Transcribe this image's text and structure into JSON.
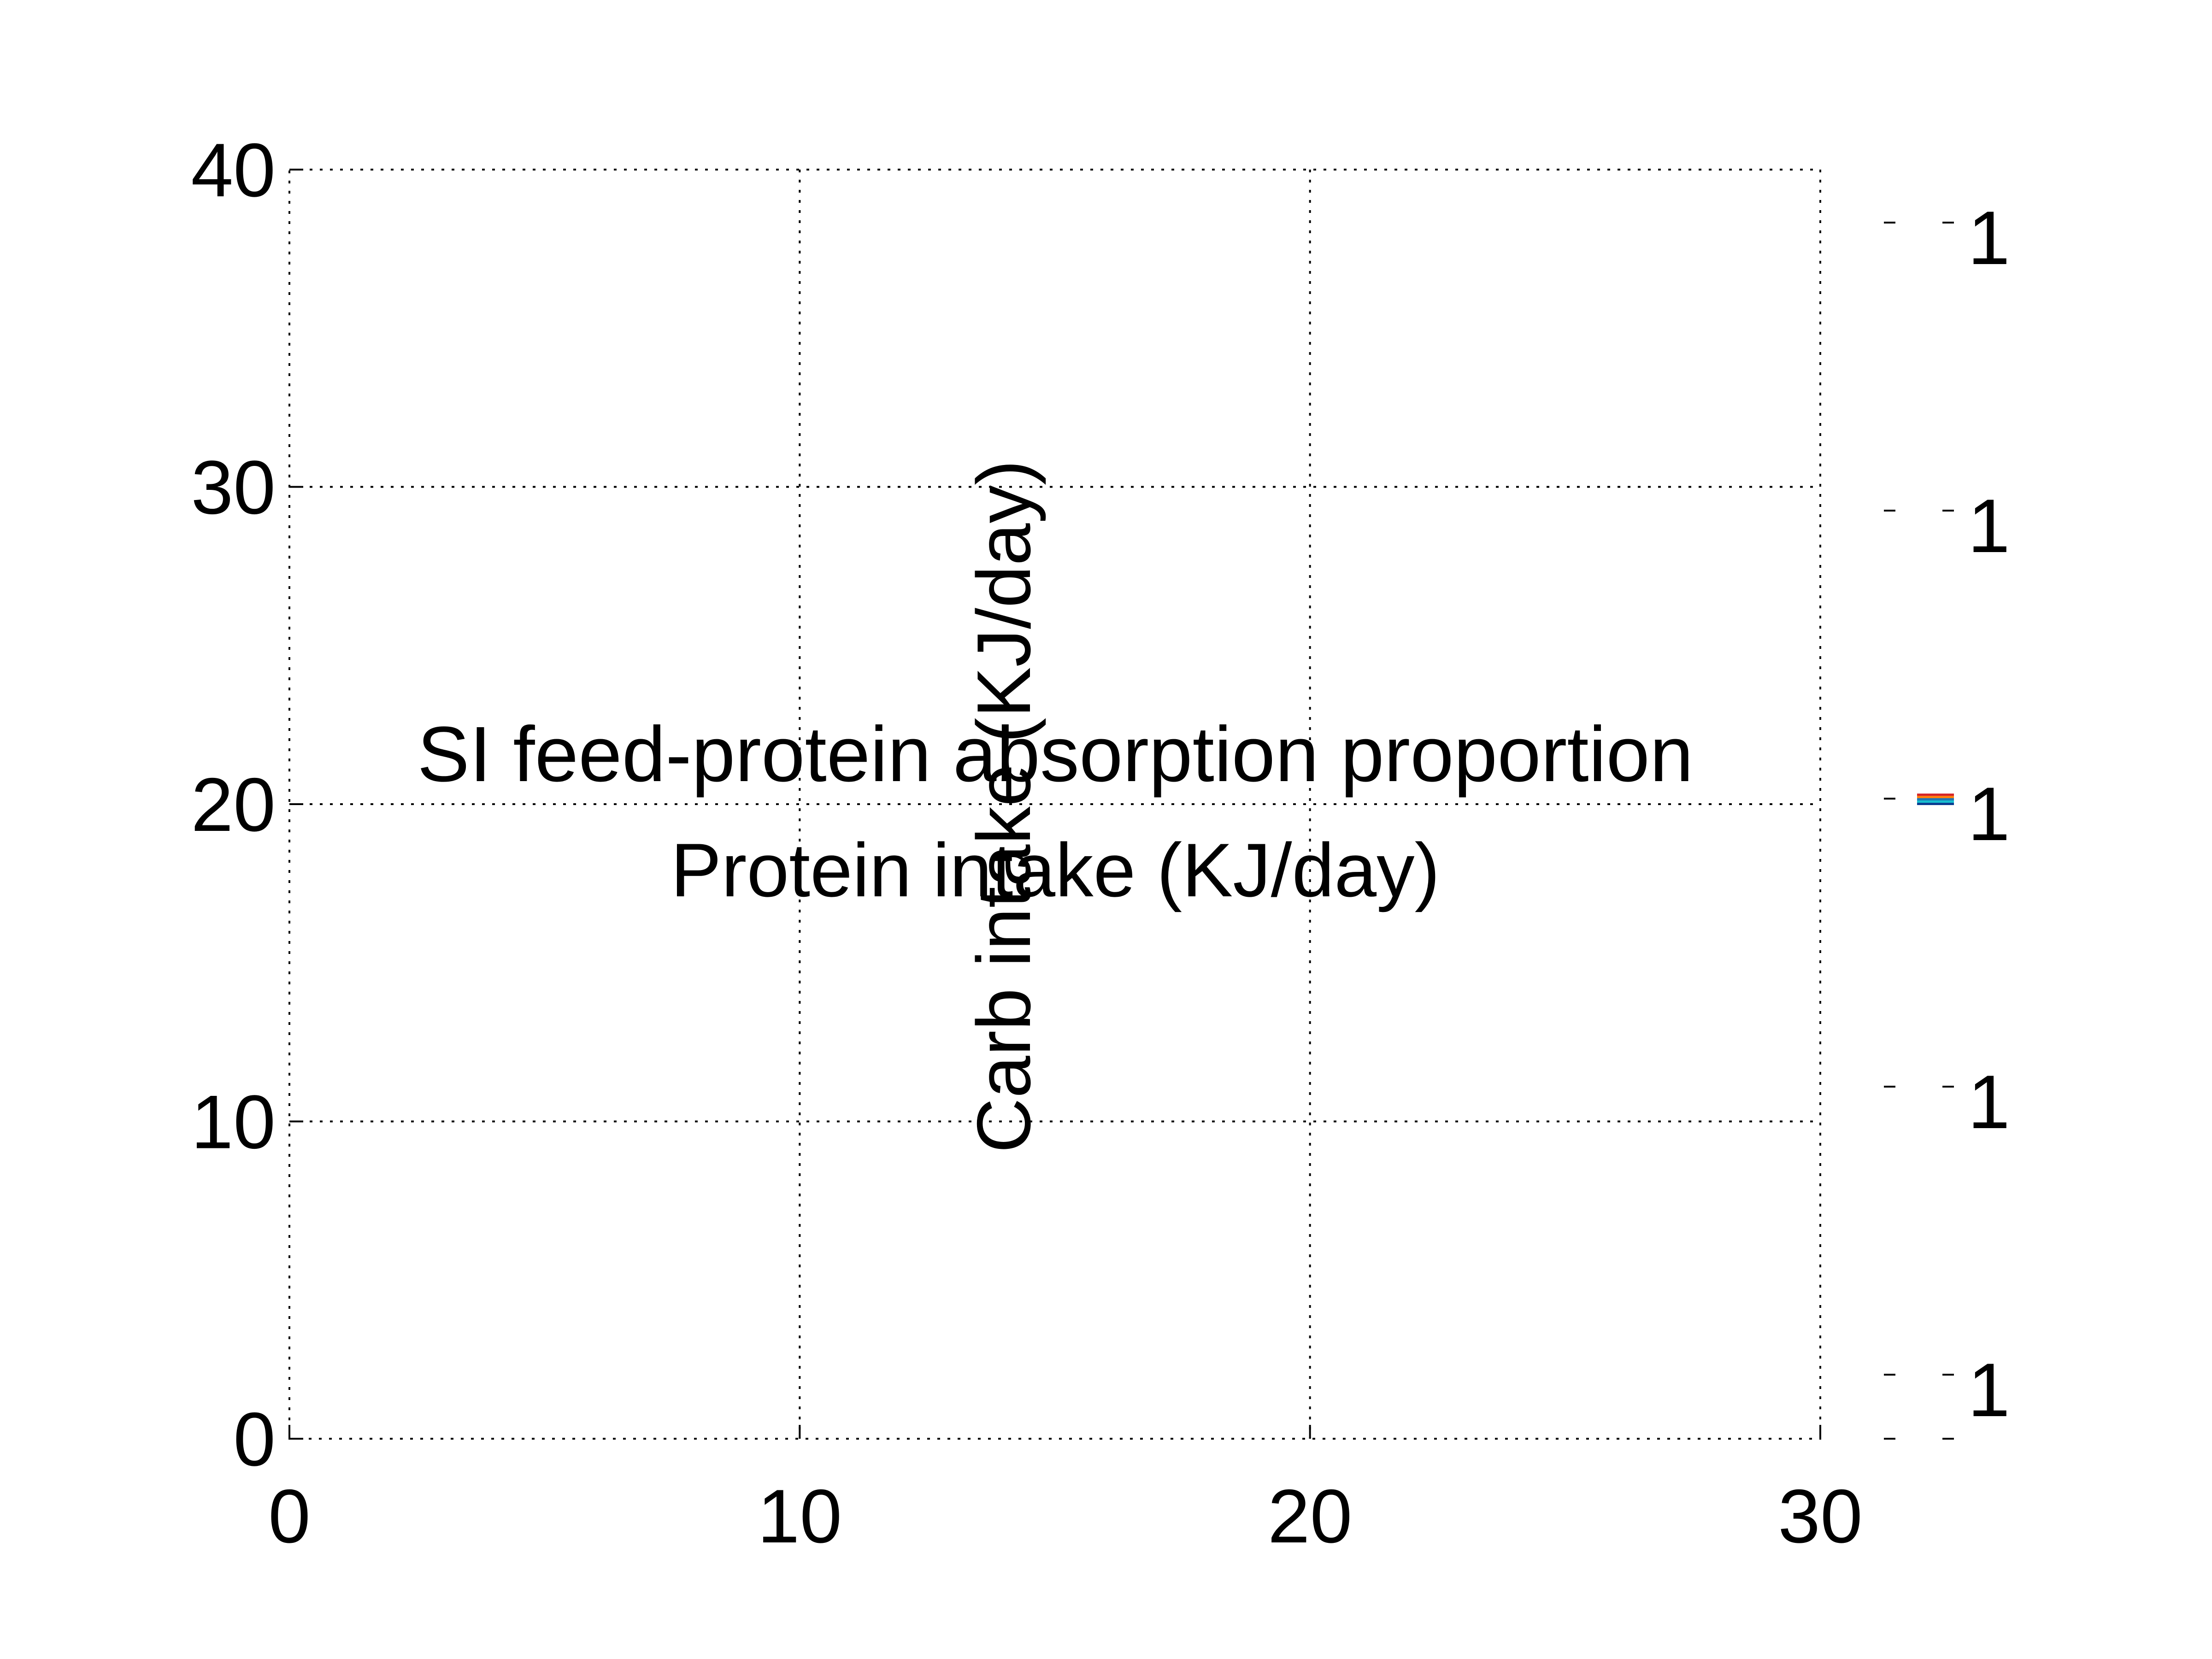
{
  "chart_data": {
    "type": "heatmap",
    "title": "SI feed-protein absorption proportion",
    "xlabel": "Protein intake (KJ/day)",
    "ylabel": "Carb intake (KJ/day)",
    "xlim": [
      0,
      30
    ],
    "ylim": [
      0,
      40
    ],
    "x_ticks": [
      0,
      10,
      20,
      30
    ],
    "y_ticks": [
      0,
      10,
      20,
      30,
      40
    ],
    "x_tick_labels": [
      "0",
      "10",
      "20",
      "30"
    ],
    "y_tick_labels": [
      "0",
      "10",
      "20",
      "30",
      "40"
    ],
    "grid": true,
    "grid_style": "dotted",
    "colorbar": {
      "tick_labels": [
        "1",
        "1",
        "1",
        "1",
        "1"
      ],
      "band_colors": [
        "#d62728",
        "#ff7f0e",
        "#1f77b4",
        "#17becf",
        "#0b3d91"
      ]
    }
  }
}
